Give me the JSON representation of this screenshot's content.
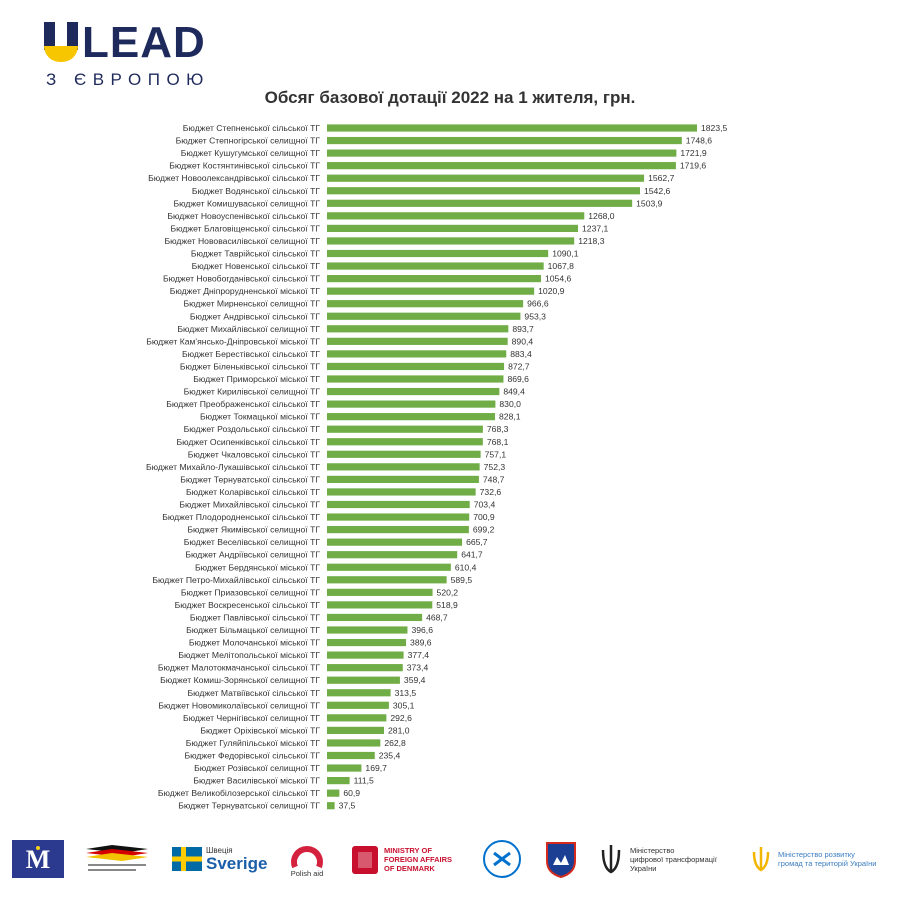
{
  "header": {
    "logo_main": "LEAD",
    "logo_sub": "З ЄВРОПОЮ"
  },
  "colors": {
    "bar": "#70ad47",
    "brand_blue": "#1f2a5c",
    "brand_yellow": "#f7c600"
  },
  "chart_data": {
    "type": "bar",
    "orientation": "horizontal",
    "title": "Обсяг базової дотації 2022 на 1 жителя, грн.",
    "xlabel": "",
    "ylabel": "",
    "xlim": [
      0,
      1823.5
    ],
    "grid": false,
    "categories": [
      "Бюджет Степненської сільської ТГ",
      "Бюджет Степногірської селищної ТГ",
      "Бюджет Кушугумської селищної ТГ",
      "Бюджет Костянтинівської сільської ТГ",
      "Бюджет Новоолександрівської сільської ТГ",
      "Бюджет Водянської сільської ТГ",
      "Бюджет Комишуваської селищної ТГ",
      "Бюджет Новоуспенівської сільської ТГ",
      "Бюджет Благовіщенської сільської ТГ",
      "Бюджет Нововасилівської селищної ТГ",
      "Бюджет Таврійської сільської ТГ",
      "Бюджет Новенської сільської ТГ",
      "Бюджет Новобогданівської сільської ТГ",
      "Бюджет Дніпрорудненської міської ТГ",
      "Бюджет Мирненської селищної ТГ",
      "Бюджет Андрівської сільської ТГ",
      "Бюджет Михайлівської селищної ТГ",
      "Бюджет Кам'янсько-Дніпровської міської ТГ",
      "Бюджет Берестівської сільської ТГ",
      "Бюджет Біленьківської сільської ТГ",
      "Бюджет Приморської міської ТГ",
      "Бюджет Кирилівської селищної ТГ",
      "Бюджет Преображенської сільської ТГ",
      "Бюджет Токмацької міської ТГ",
      "Бюджет Роздольської сільської ТГ",
      "Бюджет Осипенківської сільської ТГ",
      "Бюджет Чкаловської сільської ТГ",
      "Бюджет Михайло-Лукашівської сільської ТГ",
      "Бюджет Тернуватської сільської ТГ",
      "Бюджет Коларівської сільської ТГ",
      "Бюджет Михайлівської сільської ТГ",
      "Бюджет Плодородненської сільської ТГ",
      "Бюджет Якимівської селищної ТГ",
      "Бюджет Веселівської селищної ТГ",
      "Бюджет Андріївської селищної ТГ",
      "Бюджет Бердянської міської ТГ",
      "Бюджет Петро-Михайлівської сільської ТГ",
      "Бюджет Приазовської селищної ТГ",
      "Бюджет Воскресенської сільської ТГ",
      "Бюджет Павлівської сільської ТГ",
      "Бюджет Більмацької селищної ТГ",
      "Бюджет Молочанської міської ТГ",
      "Бюджет Мелітопольської міської ТГ",
      "Бюджет Малотокмачанської сільської ТГ",
      "Бюджет Комиш-Зорянської селищної ТГ",
      "Бюджет Матвіївської сільської ТГ",
      "Бюджет Новомиколаївської селищної ТГ",
      "Бюджет Чернігівської селищної ТГ",
      "Бюджет Оріхівської міської ТГ",
      "Бюджет Гуляйпільської міської ТГ",
      "Бюджет Федорівської сільської ТГ",
      "Бюджет Розівської селищної ТГ",
      "Бюджет Василівської міської ТГ",
      "Бюджет Великобілозерської сільської ТГ",
      "Бюджет Тернуватської селищної ТГ"
    ],
    "values": [
      1823.5,
      1748.6,
      1721.9,
      1719.6,
      1562.7,
      1542.6,
      1503.9,
      1268.0,
      1237.1,
      1218.3,
      1090.1,
      1067.8,
      1054.6,
      1020.9,
      966.6,
      953.3,
      893.7,
      890.4,
      883.4,
      872.7,
      869.6,
      849.4,
      830.0,
      828.1,
      768.3,
      768.1,
      757.1,
      752.3,
      748.7,
      732.6,
      703.4,
      700.9,
      699.2,
      665.7,
      641.7,
      610.4,
      589.5,
      520.2,
      518.9,
      468.7,
      396.6,
      389.6,
      377.4,
      373.4,
      359.4,
      313.5,
      305.1,
      292.6,
      281.0,
      262.8,
      235.4,
      169.7,
      111.5,
      60.9,
      37.5
    ],
    "value_labels": [
      "1823,5",
      "1748,6",
      "1721,9",
      "1719,6",
      "1562,7",
      "1542,6",
      "1503,9",
      "1268,0",
      "1237,1",
      "1218,3",
      "1090,1",
      "1067,8",
      "1054,6",
      "1020,9",
      "966,6",
      "953,3",
      "893,7",
      "890,4",
      "883,4",
      "872,7",
      "869,6",
      "849,4",
      "830,0",
      "828,1",
      "768,3",
      "768,1",
      "757,1",
      "752,3",
      "748,7",
      "732,6",
      "703,4",
      "700,9",
      "699,2",
      "665,7",
      "641,7",
      "610,4",
      "589,5",
      "520,2",
      "518,9",
      "468,7",
      "396,6",
      "389,6",
      "377,4",
      "373,4",
      "359,4",
      "313,5",
      "305,1",
      "292,6",
      "281,0",
      "262,8",
      "235,4",
      "169,7",
      "111,5",
      "60,9",
      "37,5"
    ]
  },
  "footer": {
    "partners": [
      {
        "name": "Європейський Союз"
      },
      {
        "name": "Співпраця з Німеччиною"
      },
      {
        "name": "Sverige",
        "line1": "Швеція",
        "line2": "Sverige"
      },
      {
        "name": "Polish aid",
        "line1": "Polish aid"
      },
      {
        "name": "Ministry of Foreign Affairs of Denmark",
        "line1": "MINISTRY OF",
        "line2": "FOREIGN AFFAIRS",
        "line3": "OF DENMARK"
      },
      {
        "name": "Estonia"
      },
      {
        "name": "Slovenia"
      },
      {
        "name": "Міністерство цифрової трансформації України",
        "line1": "Міністерство",
        "line2": "цифрової трансформації",
        "line3": "України"
      },
      {
        "name": "Міністерство розвитку громад та територій України",
        "line1": "Міністерство розвитку",
        "line2": "громад та територій України"
      }
    ]
  }
}
